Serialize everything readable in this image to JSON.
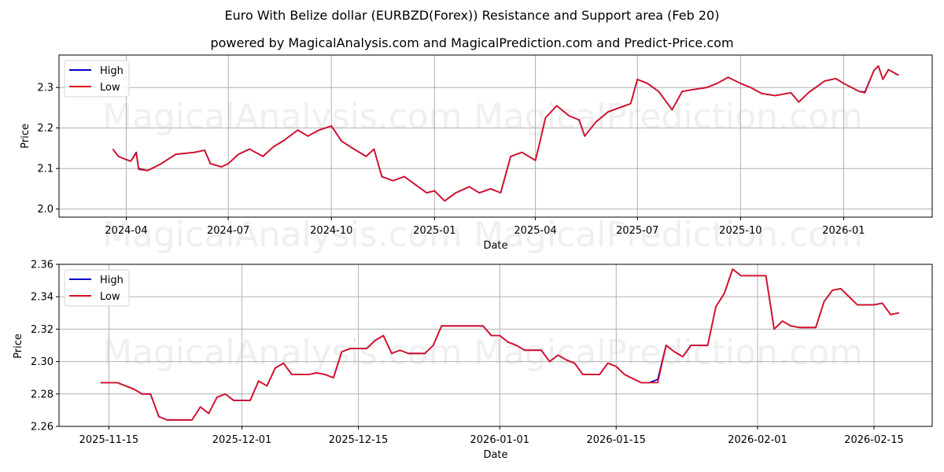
{
  "title": "Euro With Belize dollar (EURBZD(Forex)) Resistance and Support area (Feb 20)",
  "subtitle": "powered by MagicalAnalysis.com and MagicalPrediction.com and Predict-Price.com",
  "watermarks": [
    "MagicalAnalysis.com",
    "MagicalPrediction.com"
  ],
  "colors": {
    "high": "#0000cc",
    "low": "#dd1122",
    "grid": "#b0b0b0"
  },
  "chart_data": [
    {
      "type": "line",
      "title": "",
      "xlabel": "Date",
      "ylabel": "Price",
      "ylim": [
        1.98,
        2.38
      ],
      "grid": true,
      "legend_position": "upper left",
      "legend": [
        "High",
        "Low"
      ],
      "x_ticks": [
        "2024-04",
        "2024-07",
        "2024-10",
        "2025-01",
        "2025-04",
        "2025-07",
        "2025-10",
        "2026-01"
      ],
      "y_ticks": [
        "2.0",
        "2.1",
        "2.2",
        "2.3"
      ],
      "x": [
        "2024-03-20",
        "2024-03-25",
        "2024-04-01",
        "2024-04-05",
        "2024-04-10",
        "2024-04-12",
        "2024-04-20",
        "2024-05-01",
        "2024-05-15",
        "2024-06-01",
        "2024-06-10",
        "2024-06-15",
        "2024-06-25",
        "2024-07-01",
        "2024-07-10",
        "2024-07-20",
        "2024-08-01",
        "2024-08-10",
        "2024-08-20",
        "2024-09-01",
        "2024-09-10",
        "2024-09-20",
        "2024-10-01",
        "2024-10-10",
        "2024-10-20",
        "2024-11-01",
        "2024-11-08",
        "2024-11-15",
        "2024-11-25",
        "2024-12-05",
        "2024-12-15",
        "2024-12-25",
        "2025-01-01",
        "2025-01-10",
        "2025-01-20",
        "2025-02-01",
        "2025-02-10",
        "2025-02-20",
        "2025-03-01",
        "2025-03-10",
        "2025-03-20",
        "2025-04-01",
        "2025-04-05",
        "2025-04-10",
        "2025-04-20",
        "2025-05-01",
        "2025-05-10",
        "2025-05-15",
        "2025-05-25",
        "2025-06-05",
        "2025-06-15",
        "2025-06-25",
        "2025-07-01",
        "2025-07-10",
        "2025-07-20",
        "2025-08-01",
        "2025-08-10",
        "2025-08-20",
        "2025-09-01",
        "2025-09-10",
        "2025-09-20",
        "2025-10-01",
        "2025-10-10",
        "2025-10-20",
        "2025-11-01",
        "2025-11-15",
        "2025-11-22",
        "2025-12-01",
        "2025-12-15",
        "2025-12-25",
        "2026-01-01",
        "2026-01-15",
        "2026-01-20",
        "2026-01-28",
        "2026-02-01",
        "2026-02-05",
        "2026-02-10",
        "2026-02-19"
      ],
      "series": [
        {
          "name": "Low",
          "values": [
            2.148,
            2.13,
            2.122,
            2.118,
            2.138,
            2.098,
            2.095,
            2.11,
            2.135,
            2.14,
            2.145,
            2.112,
            2.104,
            2.112,
            2.135,
            2.148,
            2.13,
            2.153,
            2.17,
            2.195,
            2.18,
            2.195,
            2.205,
            2.168,
            2.15,
            2.13,
            2.148,
            2.08,
            2.07,
            2.08,
            2.06,
            2.04,
            2.045,
            2.02,
            2.04,
            2.055,
            2.04,
            2.05,
            2.04,
            2.13,
            2.14,
            2.12,
            2.165,
            2.225,
            2.255,
            2.23,
            2.22,
            2.18,
            2.215,
            2.24,
            2.25,
            2.26,
            2.32,
            2.31,
            2.29,
            2.245,
            2.29,
            2.295,
            2.3,
            2.31,
            2.325,
            2.31,
            2.3,
            2.285,
            2.28,
            2.287,
            2.264,
            2.288,
            2.316,
            2.322,
            2.31,
            2.29,
            2.287,
            2.342,
            2.353,
            2.32,
            2.344,
            2.33
          ]
        },
        {
          "name": "High",
          "values": [
            2.148,
            2.13,
            2.122,
            2.118,
            2.14,
            2.1,
            2.095,
            2.11,
            2.135,
            2.14,
            2.145,
            2.112,
            2.104,
            2.112,
            2.135,
            2.148,
            2.13,
            2.153,
            2.17,
            2.195,
            2.18,
            2.195,
            2.205,
            2.168,
            2.15,
            2.13,
            2.148,
            2.08,
            2.07,
            2.08,
            2.06,
            2.04,
            2.045,
            2.02,
            2.04,
            2.055,
            2.04,
            2.05,
            2.04,
            2.13,
            2.14,
            2.12,
            2.165,
            2.225,
            2.255,
            2.23,
            2.22,
            2.18,
            2.215,
            2.24,
            2.25,
            2.26,
            2.32,
            2.31,
            2.29,
            2.245,
            2.29,
            2.295,
            2.3,
            2.31,
            2.325,
            2.31,
            2.3,
            2.285,
            2.28,
            2.287,
            2.264,
            2.288,
            2.316,
            2.322,
            2.31,
            2.29,
            2.289,
            2.342,
            2.353,
            2.32,
            2.344,
            2.33
          ]
        }
      ]
    },
    {
      "type": "line",
      "title": "",
      "xlabel": "Date",
      "ylabel": "Price",
      "ylim": [
        2.26,
        2.36
      ],
      "grid": true,
      "legend_position": "upper left",
      "legend": [
        "High",
        "Low"
      ],
      "x_ticks": [
        "2025-11-15",
        "2025-12-01",
        "2025-12-15",
        "2026-01-01",
        "2026-01-15",
        "2026-02-01",
        "2026-02-15"
      ],
      "y_ticks": [
        "2.26",
        "2.28",
        "2.30",
        "2.32",
        "2.34",
        "2.36"
      ],
      "x": [
        "2025-11-14",
        "2025-11-16",
        "2025-11-18",
        "2025-11-19",
        "2025-11-20",
        "2025-11-21",
        "2025-11-22",
        "2025-11-24",
        "2025-11-25",
        "2025-11-26",
        "2025-11-27",
        "2025-11-28",
        "2025-11-29",
        "2025-11-30",
        "2025-12-01",
        "2025-12-02",
        "2025-12-03",
        "2025-12-04",
        "2025-12-05",
        "2025-12-06",
        "2025-12-07",
        "2025-12-08",
        "2025-12-09",
        "2025-12-10",
        "2025-12-11",
        "2025-12-12",
        "2025-12-13",
        "2025-12-14",
        "2025-12-15",
        "2025-12-16",
        "2025-12-17",
        "2025-12-18",
        "2025-12-19",
        "2025-12-20",
        "2025-12-21",
        "2025-12-22",
        "2025-12-23",
        "2025-12-24",
        "2025-12-25",
        "2025-12-26",
        "2025-12-27",
        "2025-12-28",
        "2025-12-29",
        "2025-12-30",
        "2025-12-31",
        "2026-01-01",
        "2026-01-02",
        "2026-01-03",
        "2026-01-04",
        "2026-01-05",
        "2026-01-06",
        "2026-01-07",
        "2026-01-08",
        "2026-01-09",
        "2026-01-10",
        "2026-01-11",
        "2026-01-12",
        "2026-01-13",
        "2026-01-14",
        "2026-01-15",
        "2026-01-16",
        "2026-01-18",
        "2026-01-19",
        "2026-01-20",
        "2026-01-21",
        "2026-01-22",
        "2026-01-23",
        "2026-01-24",
        "2026-01-25",
        "2026-01-26",
        "2026-01-27",
        "2026-01-28",
        "2026-01-29",
        "2026-01-30",
        "2026-02-01",
        "2026-02-02",
        "2026-02-03",
        "2026-02-04",
        "2026-02-05",
        "2026-02-06",
        "2026-02-07",
        "2026-02-08",
        "2026-02-09",
        "2026-02-10",
        "2026-02-11",
        "2026-02-12",
        "2026-02-13",
        "2026-02-15",
        "2026-02-16",
        "2026-02-17",
        "2026-02-18"
      ],
      "series": [
        {
          "name": "Low",
          "values": [
            2.287,
            2.287,
            2.283,
            2.28,
            2.28,
            2.266,
            2.264,
            2.264,
            2.264,
            2.272,
            2.268,
            2.278,
            2.28,
            2.276,
            2.276,
            2.276,
            2.288,
            2.285,
            2.296,
            2.299,
            2.292,
            2.292,
            2.292,
            2.293,
            2.292,
            2.29,
            2.306,
            2.308,
            2.308,
            2.308,
            2.313,
            2.316,
            2.305,
            2.307,
            2.305,
            2.305,
            2.305,
            2.31,
            2.322,
            2.322,
            2.322,
            2.322,
            2.322,
            2.322,
            2.316,
            2.316,
            2.312,
            2.31,
            2.307,
            2.307,
            2.307,
            2.3,
            2.304,
            2.301,
            2.299,
            2.292,
            2.292,
            2.292,
            2.299,
            2.297,
            2.292,
            2.287,
            2.287,
            2.287,
            2.31,
            2.306,
            2.303,
            2.31,
            2.31,
            2.31,
            2.334,
            2.342,
            2.357,
            2.353,
            2.353,
            2.353,
            2.32,
            2.325,
            2.322,
            2.321,
            2.321,
            2.321,
            2.337,
            2.344,
            2.345,
            2.34,
            2.335,
            2.335,
            2.336,
            2.329,
            2.33
          ]
        },
        {
          "name": "High",
          "values": [
            2.287,
            2.287,
            2.283,
            2.28,
            2.28,
            2.266,
            2.264,
            2.264,
            2.264,
            2.272,
            2.268,
            2.278,
            2.28,
            2.276,
            2.276,
            2.276,
            2.288,
            2.285,
            2.296,
            2.299,
            2.292,
            2.292,
            2.292,
            2.293,
            2.292,
            2.29,
            2.306,
            2.308,
            2.308,
            2.308,
            2.313,
            2.316,
            2.305,
            2.307,
            2.305,
            2.305,
            2.305,
            2.31,
            2.322,
            2.322,
            2.322,
            2.322,
            2.322,
            2.322,
            2.316,
            2.316,
            2.312,
            2.31,
            2.307,
            2.307,
            2.307,
            2.3,
            2.304,
            2.301,
            2.299,
            2.292,
            2.292,
            2.292,
            2.299,
            2.297,
            2.292,
            2.287,
            2.287,
            2.289,
            2.31,
            2.306,
            2.303,
            2.31,
            2.31,
            2.31,
            2.334,
            2.342,
            2.357,
            2.353,
            2.353,
            2.353,
            2.32,
            2.325,
            2.322,
            2.321,
            2.321,
            2.321,
            2.337,
            2.344,
            2.345,
            2.34,
            2.335,
            2.335,
            2.336,
            2.329,
            2.33
          ]
        }
      ]
    }
  ]
}
